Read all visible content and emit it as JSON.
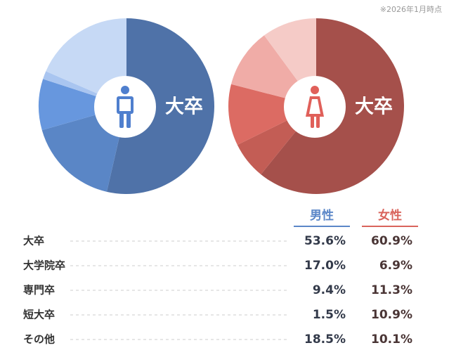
{
  "note": "※2026年1月時点",
  "chart_data": {
    "type": "pie",
    "center_label": "大卒",
    "categories": [
      "大卒",
      "大学院卒",
      "専門卒",
      "短大卒",
      "その他"
    ],
    "series": [
      {
        "name": "男性",
        "color": "#5b87c8",
        "colors": [
          "#4f72a8",
          "#5a86c6",
          "#6797de",
          "#a9c5f0",
          "#c6d9f5"
        ],
        "values": [
          53.6,
          17.0,
          9.4,
          1.5,
          18.5
        ],
        "value_labels": [
          "53.6%",
          "17.0%",
          "9.4%",
          "1.5%",
          "18.5%"
        ]
      },
      {
        "name": "女性",
        "color": "#d9645c",
        "colors": [
          "#a5504b",
          "#c35d55",
          "#dc6b63",
          "#f0aca7",
          "#f5cbc7"
        ],
        "values": [
          60.9,
          6.9,
          11.3,
          10.9,
          10.1
        ],
        "value_labels": [
          "60.9%",
          "6.9%",
          "11.3%",
          "10.9%",
          "10.1%"
        ]
      }
    ]
  }
}
